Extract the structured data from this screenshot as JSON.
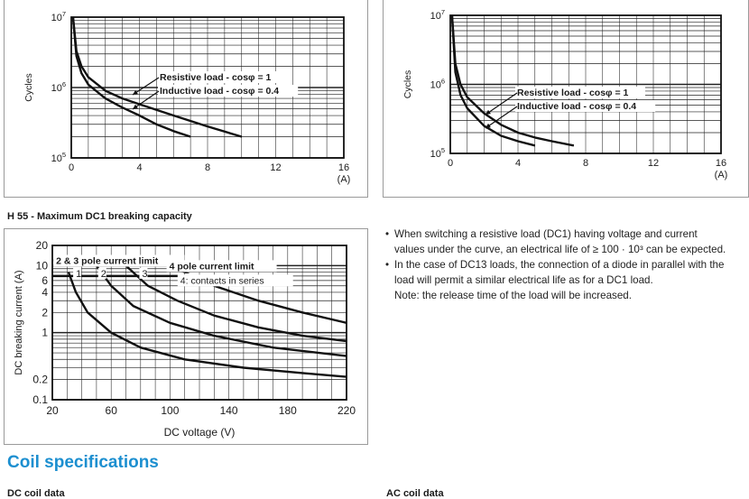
{
  "chart_data": [
    {
      "type": "line",
      "title": "",
      "xlabel": "(A)",
      "ylabel": "Cycles",
      "xticks": [
        "0",
        "4",
        "8",
        "12",
        "16"
      ],
      "yticks": [
        "10^5",
        "10^6",
        "10^7"
      ],
      "xlim": [
        0,
        16
      ],
      "ylim": [
        100000,
        10000000
      ],
      "yscale": "log",
      "grid": true,
      "annotations": [
        "Resistive load - cosφ = 1",
        "Inductive load - cosφ = 0.4"
      ],
      "series": [
        {
          "name": "Resistive load - cosφ = 1",
          "points": [
            [
              0.1,
              10000000
            ],
            [
              0.3,
              3300000
            ],
            [
              0.6,
              2000000
            ],
            [
              1,
              1400000
            ],
            [
              2,
              900000
            ],
            [
              3,
              700000
            ],
            [
              4,
              580000
            ],
            [
              6,
              400000
            ],
            [
              8,
              280000
            ],
            [
              10,
              200000
            ]
          ]
        },
        {
          "name": "Inductive load - cosφ = 0.4",
          "points": [
            [
              0.1,
              10000000
            ],
            [
              0.3,
              2800000
            ],
            [
              0.6,
              1600000
            ],
            [
              1,
              1100000
            ],
            [
              2,
              700000
            ],
            [
              3,
              520000
            ],
            [
              4,
              400000
            ],
            [
              5,
              300000
            ],
            [
              6,
              240000
            ],
            [
              7,
              200000
            ]
          ]
        }
      ]
    },
    {
      "type": "line",
      "title": "",
      "xlabel": "(A)",
      "ylabel": "Cycles",
      "xticks": [
        "0",
        "4",
        "8",
        "12",
        "16"
      ],
      "yticks": [
        "10^5",
        "10^6",
        "10^7"
      ],
      "xlim": [
        0,
        16
      ],
      "ylim": [
        100000,
        10000000
      ],
      "yscale": "log",
      "grid": true,
      "annotations": [
        "Resistive load - cosφ = 1",
        "Inductive load - cosφ = 0.4"
      ],
      "series": [
        {
          "name": "Resistive load - cosφ = 1",
          "points": [
            [
              0.1,
              10000000
            ],
            [
              0.3,
              2000000
            ],
            [
              0.6,
              1000000
            ],
            [
              1,
              650000
            ],
            [
              2,
              380000
            ],
            [
              3,
              260000
            ],
            [
              4,
              200000
            ],
            [
              5,
              170000
            ],
            [
              6,
              150000
            ],
            [
              7.3,
              130000
            ]
          ]
        },
        {
          "name": "Inductive load - cosφ = 0.4",
          "points": [
            [
              0.1,
              10000000
            ],
            [
              0.3,
              1500000
            ],
            [
              0.6,
              700000
            ],
            [
              1,
              450000
            ],
            [
              2,
              250000
            ],
            [
              3,
              180000
            ],
            [
              4,
              150000
            ],
            [
              5,
              130000
            ]
          ]
        }
      ]
    },
    {
      "type": "line",
      "title": "H 55 - Maximum DC1 breaking capacity",
      "xlabel": "DC voltage (V)",
      "ylabel": "DC breaking current (A)",
      "xticks": [
        "20",
        "60",
        "100",
        "140",
        "180",
        "220"
      ],
      "yticks": [
        "0.1",
        "0.2",
        "1",
        "2",
        "4",
        "6",
        "10",
        "20"
      ],
      "xlim": [
        20,
        220
      ],
      "ylim": [
        0.1,
        20
      ],
      "yscale": "log",
      "grid": true,
      "annotations": [
        "2 & 3 pole current limit",
        "4 pole current limit",
        "4: contacts in series"
      ],
      "series": [
        {
          "name": "1",
          "points": [
            [
              31,
              8
            ],
            [
              36,
              4
            ],
            [
              44,
              2
            ],
            [
              60,
              1
            ],
            [
              80,
              0.6
            ],
            [
              110,
              0.4
            ],
            [
              150,
              0.3
            ],
            [
              190,
              0.25
            ],
            [
              220,
              0.22
            ]
          ]
        },
        {
          "name": "2",
          "points": [
            [
              50,
              10
            ],
            [
              60,
              5
            ],
            [
              75,
              2.5
            ],
            [
              100,
              1.4
            ],
            [
              130,
              0.9
            ],
            [
              170,
              0.6
            ],
            [
              220,
              0.45
            ]
          ]
        },
        {
          "name": "3",
          "points": [
            [
              70,
              10
            ],
            [
              85,
              5
            ],
            [
              105,
              3
            ],
            [
              130,
              1.8
            ],
            [
              160,
              1.2
            ],
            [
              190,
              0.9
            ],
            [
              220,
              0.75
            ]
          ]
        },
        {
          "name": "4",
          "points": [
            [
              100,
              10
            ],
            [
              110,
              8
            ],
            [
              130,
              5
            ],
            [
              160,
              3
            ],
            [
              190,
              2
            ],
            [
              220,
              1.4
            ]
          ]
        }
      ],
      "limits": [
        {
          "name": "2 & 3 pole current limit",
          "y": 12
        },
        {
          "name": "4 pole current limit",
          "y": 10
        },
        {
          "name": "4: contacts in series",
          "y": 7
        }
      ]
    }
  ],
  "chart3_title": "H 55 - Maximum DC1 breaking capacity",
  "notes": {
    "bullet1_line1": "When switching a resistive load (DC1) having voltage and current",
    "bullet1_line2": "values under the curve, an electrical life of ≥ 100 · 10³ can be expected.",
    "bullet2_line1": "In the case of DC13 loads, the connection of a diode in parallel with the",
    "bullet2_line2": "load will permit a similar electrical life as for a DC1 load.",
    "bullet2_line3": "Note: the release time of the load will be increased."
  },
  "coil_heading": "Coil specifications",
  "dc_coil": "DC coil data",
  "ac_coil": "AC coil data",
  "colors": {
    "heading": "#1c8fd0",
    "line": "#1a1a1a",
    "border": "#9a9a9a"
  }
}
